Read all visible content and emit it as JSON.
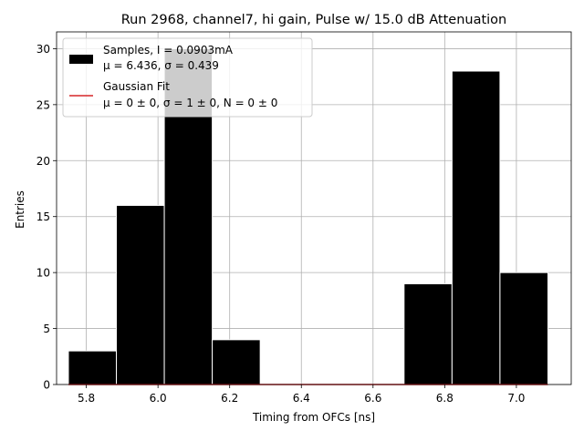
{
  "chart_data": {
    "type": "bar",
    "title": "Run 2968, channel7, hi gain, Pulse w/ 15.0 dB Attenuation",
    "xlabel": "Timing from OFCs [ns]",
    "ylabel": "Entries",
    "xlim": [
      5.717,
      7.153
    ],
    "ylim": [
      0,
      31.5
    ],
    "x_ticks": [
      5.8,
      6.0,
      6.2,
      6.4,
      6.6,
      6.8,
      7.0
    ],
    "x_tick_labels": [
      "5.8",
      "6.0",
      "6.2",
      "6.4",
      "6.6",
      "6.8",
      "7.0"
    ],
    "y_ticks": [
      0,
      5,
      10,
      15,
      20,
      25,
      30
    ],
    "y_tick_labels": [
      "0",
      "5",
      "10",
      "15",
      "20",
      "25",
      "30"
    ],
    "grid": true,
    "legend_position": "top-left",
    "bin_width": 0.1338,
    "bins": [
      {
        "x0": 5.75,
        "value": 3
      },
      {
        "x0": 5.8838,
        "value": 16
      },
      {
        "x0": 6.0176,
        "value": 30
      },
      {
        "x0": 6.1514,
        "value": 4
      },
      {
        "x0": 6.2852,
        "value": 0
      },
      {
        "x0": 6.419,
        "value": 0
      },
      {
        "x0": 6.5528,
        "value": 0
      },
      {
        "x0": 6.6866,
        "value": 9
      },
      {
        "x0": 6.8204,
        "value": 28
      },
      {
        "x0": 6.9542,
        "value": 10
      }
    ],
    "fit_line": {
      "x": [
        5.75,
        7.088
      ],
      "y": [
        0,
        0
      ]
    },
    "legend": [
      {
        "label": "Samples, I = 0.0903mA",
        "sublabel": "μ = 6.436, σ = 0.439",
        "kind": "patch",
        "color": "#000000"
      },
      {
        "label": "Gaussian Fit",
        "sublabel": "μ = 0 ± 0, σ = 1 ± 0, N = 0 ± 0",
        "kind": "line",
        "color": "#d62728"
      }
    ],
    "colors": {
      "bars": "#000000",
      "bar_edge": "#ffffff",
      "fit": "#d62728",
      "grid": "#b0b0b0"
    }
  }
}
